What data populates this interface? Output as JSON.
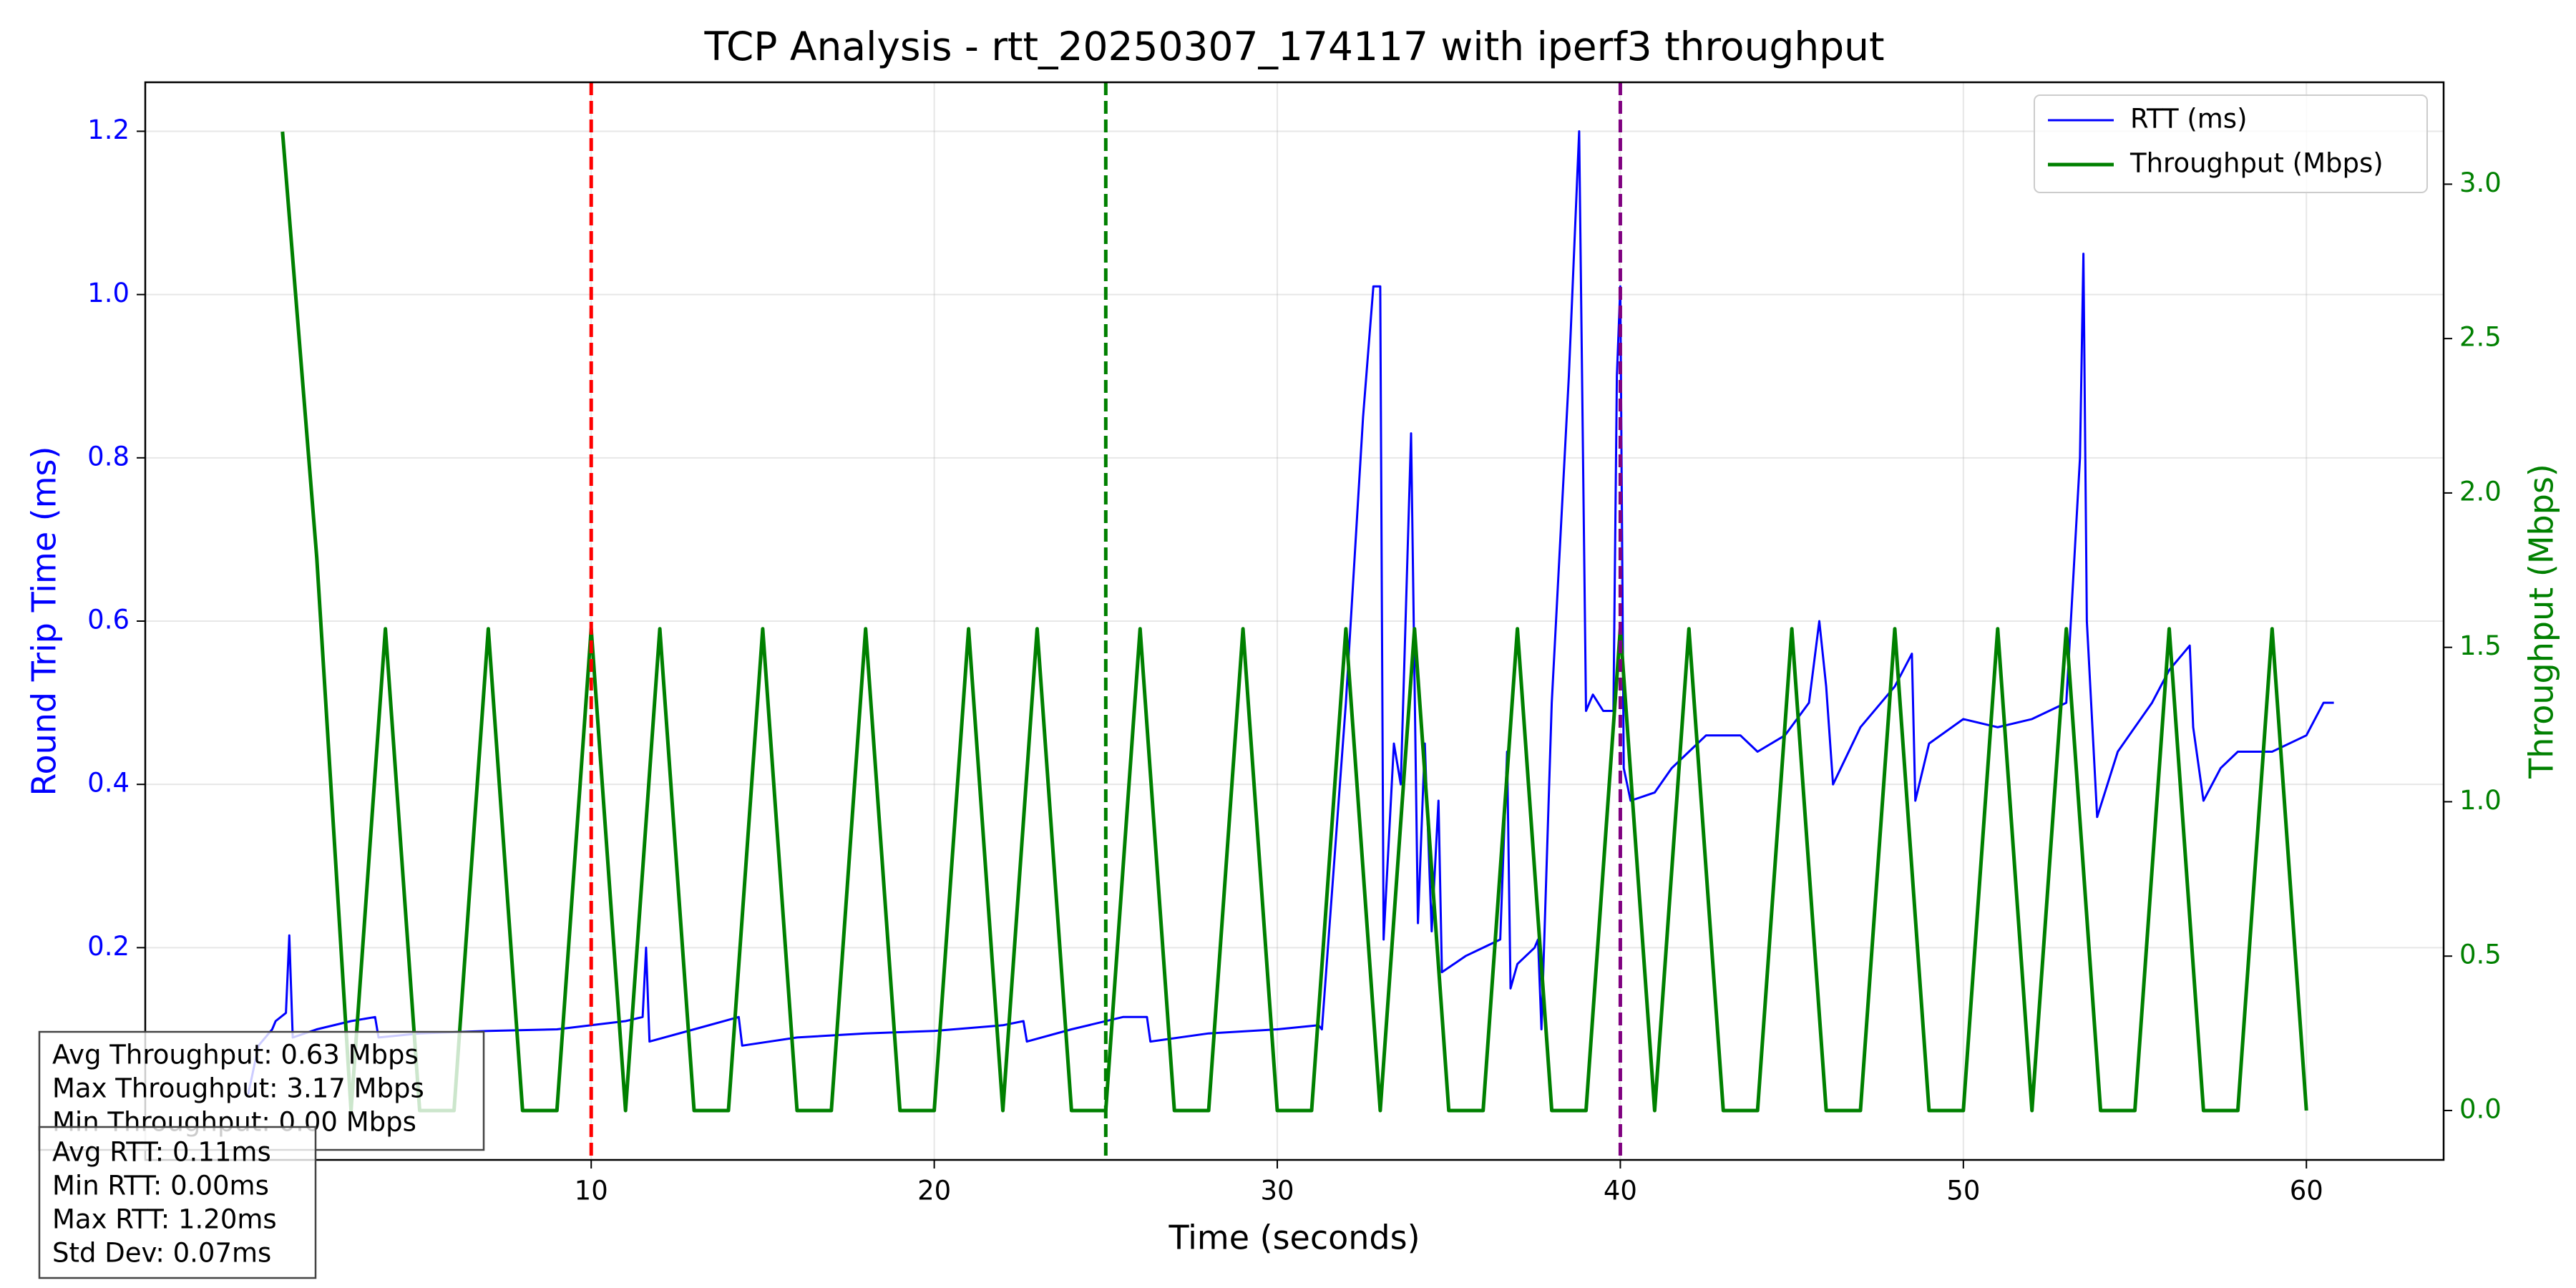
{
  "chart_data": {
    "type": "line",
    "title": "TCP Analysis - rtt_20250307_174117 with iperf3 throughput",
    "x_label": "Time (seconds)",
    "y_label": "Round Trip Time (ms)",
    "y2_label": "Throughput (Mbps)",
    "xlim": [
      -3,
      64
    ],
    "xticks": [
      10,
      20,
      30,
      40,
      50,
      60
    ],
    "ylim": [
      -0.06,
      1.26
    ],
    "yticks": [
      0.2,
      0.4,
      0.6,
      0.8,
      {
        "value": 1,
        "label": "1.0"
      },
      1.2
    ],
    "y2lim": [
      -0.16,
      3.33
    ],
    "y2ticks": [
      {
        "value": 0,
        "label": "0.0"
      },
      0.5,
      {
        "value": 1,
        "label": "1.0"
      },
      1.5,
      {
        "value": 2,
        "label": "2.0"
      },
      2.5,
      {
        "value": 3,
        "label": "3.0"
      }
    ],
    "grid": true,
    "legend": "upper right",
    "series": [
      {
        "name": "RTT (ms)",
        "color": "#0000ff",
        "axis": "y",
        "x": [
          0,
          0.3,
          0.7,
          0.8,
          1.1,
          1.2,
          1.3,
          2,
          3,
          3.7,
          3.8,
          5,
          7,
          9,
          11,
          11.5,
          11.6,
          11.7,
          13,
          14.3,
          14.4,
          16,
          18,
          20,
          22,
          22.6,
          22.7,
          24,
          25.5,
          26.2,
          26.3,
          28,
          30,
          31.2,
          31.3,
          32,
          32.5,
          32.8,
          33,
          33.1,
          33.4,
          33.6,
          33.9,
          34.1,
          34.3,
          34.5,
          34.7,
          34.8,
          35.5,
          36,
          36.5,
          36.7,
          36.8,
          37,
          37.5,
          37.6,
          37.7,
          38,
          38.5,
          38.8,
          39,
          39.2,
          39.5,
          39.8,
          39.9,
          40,
          40.1,
          40.3,
          41,
          41.5,
          42,
          42.5,
          43.5,
          44,
          44.8,
          45.5,
          45.8,
          46,
          46.2,
          47,
          48,
          48.5,
          48.6,
          49,
          50,
          51,
          52,
          53,
          53.4,
          53.5,
          53.6,
          53.9,
          54.5,
          55,
          55.5,
          56,
          56.6,
          56.7,
          57,
          57.5,
          58,
          59,
          60,
          60.5,
          60.8
        ],
        "values": [
          0.02,
          0.08,
          0.1,
          0.11,
          0.12,
          0.215,
          0.09,
          0.1,
          0.11,
          0.115,
          0.09,
          0.095,
          0.098,
          0.1,
          0.11,
          0.115,
          0.2,
          0.085,
          0.1,
          0.115,
          0.08,
          0.09,
          0.095,
          0.098,
          0.105,
          0.11,
          0.085,
          0.1,
          0.115,
          0.115,
          0.085,
          0.095,
          0.1,
          0.105,
          0.1,
          0.5,
          0.85,
          1.01,
          1.01,
          0.21,
          0.45,
          0.4,
          0.83,
          0.23,
          0.45,
          0.22,
          0.38,
          0.17,
          0.19,
          0.2,
          0.21,
          0.44,
          0.15,
          0.18,
          0.2,
          0.21,
          0.1,
          0.5,
          0.9,
          1.2,
          0.49,
          0.51,
          0.49,
          0.49,
          0.9,
          1.01,
          0.42,
          0.38,
          0.39,
          0.42,
          0.44,
          0.46,
          0.46,
          0.44,
          0.46,
          0.5,
          0.6,
          0.52,
          0.4,
          0.47,
          0.52,
          0.56,
          0.38,
          0.45,
          0.48,
          0.47,
          0.48,
          0.5,
          0.8,
          1.05,
          0.6,
          0.36,
          0.44,
          0.47,
          0.5,
          0.54,
          0.57,
          0.47,
          0.38,
          0.42,
          0.44,
          0.44,
          0.46,
          0.5,
          0.5
        ]
      },
      {
        "name": "Throughput (Mbps)",
        "color": "#008000",
        "axis": "y2",
        "x": [
          1,
          2,
          3,
          4,
          5,
          6,
          7,
          8,
          9,
          10,
          11,
          12,
          13,
          14,
          15,
          16,
          17,
          18,
          19,
          20,
          21,
          22,
          23,
          24,
          25,
          26,
          27,
          28,
          29,
          30,
          31,
          32,
          33,
          34,
          35,
          36,
          37,
          38,
          39,
          40,
          41,
          42,
          43,
          44,
          45,
          46,
          47,
          48,
          49,
          50,
          51,
          52,
          53,
          54,
          55,
          56,
          57,
          58,
          59,
          60
        ],
        "values": [
          3.17,
          1.79,
          0,
          1.56,
          0,
          0,
          1.56,
          0,
          0,
          1.56,
          0,
          1.56,
          0,
          0,
          1.56,
          0,
          0,
          1.56,
          0,
          0,
          1.56,
          0,
          1.56,
          0,
          0,
          1.56,
          0,
          0,
          1.56,
          0,
          0,
          1.56,
          0,
          1.56,
          0,
          0,
          1.56,
          0,
          0,
          1.56,
          0,
          1.56,
          0,
          0,
          1.56,
          0,
          0,
          1.56,
          0,
          0,
          1.56,
          0,
          1.56,
          0,
          0,
          1.56,
          0,
          0,
          1.56,
          0
        ]
      }
    ],
    "vlines": [
      {
        "x": 10,
        "color": "#ff0000"
      },
      {
        "x": 25,
        "color": "#008000"
      },
      {
        "x": 40,
        "color": "#800080"
      }
    ],
    "stats_boxes": [
      [
        "Avg Throughput: 0.63 Mbps",
        "Max Throughput: 3.17 Mbps",
        "Min Throughput: 0.00 Mbps"
      ],
      [
        "Avg RTT: 0.11ms",
        "Min RTT: 0.00ms",
        "Max RTT: 1.20ms",
        "Std Dev: 0.07ms"
      ]
    ]
  }
}
